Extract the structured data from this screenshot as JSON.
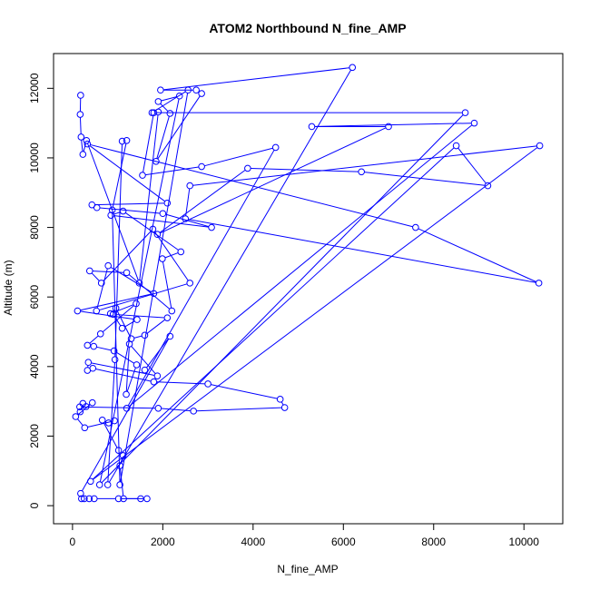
{
  "chart_data": {
    "type": "line",
    "title": "ATOM2 Northbound N_fine_AMP",
    "xlabel": "N_fine_AMP",
    "ylabel": "Altitude (m)",
    "xlim": [
      -420,
      10860
    ],
    "ylim": [
      -520,
      13000
    ],
    "xticks": [
      0,
      2000,
      4000,
      6000,
      8000,
      10000
    ],
    "yticks": [
      0,
      2000,
      4000,
      6000,
      8000,
      10000,
      12000
    ],
    "xtick_labels": [
      "0",
      "2000",
      "4000",
      "6000",
      "8000",
      "10000"
    ],
    "ytick_labels": [
      "0",
      "2000",
      "4000",
      "6000",
      "8000",
      "10000",
      "12000"
    ],
    "grid": false,
    "legend": "none",
    "marker": "open-circle",
    "line_color": "#0000ff",
    "points": [
      [
        180,
        11800
      ],
      [
        170,
        11250
      ],
      [
        190,
        10600
      ],
      [
        230,
        10100
      ],
      [
        310,
        10500
      ],
      [
        1480,
        6400
      ],
      [
        1900,
        11320
      ],
      [
        1760,
        11300
      ],
      [
        2560,
        11950
      ],
      [
        1050,
        600
      ],
      [
        880,
        8500
      ],
      [
        1200,
        10500
      ],
      [
        1100,
        10480
      ],
      [
        940,
        4200
      ],
      [
        780,
        600
      ],
      [
        6200,
        12600
      ],
      [
        1950,
        11950
      ],
      [
        2740,
        11950
      ],
      [
        2860,
        11850
      ],
      [
        1850,
        9900
      ],
      [
        2160,
        11280
      ],
      [
        1900,
        11620
      ],
      [
        2370,
        11780
      ],
      [
        600,
        600
      ],
      [
        8700,
        11300
      ],
      [
        1800,
        11300
      ],
      [
        1550,
        9500
      ],
      [
        2860,
        9750
      ],
      [
        4500,
        10300
      ],
      [
        1200,
        2800
      ],
      [
        8900,
        11000
      ],
      [
        5300,
        10900
      ],
      [
        7000,
        10900
      ],
      [
        1880,
        7800
      ],
      [
        3880,
        9700
      ],
      [
        6400,
        9600
      ],
      [
        9200,
        9200
      ],
      [
        8500,
        10350
      ],
      [
        400,
        700
      ],
      [
        10350,
        10350
      ],
      [
        2600,
        9200
      ],
      [
        2500,
        8250
      ],
      [
        10330,
        6400
      ],
      [
        7600,
        8000
      ],
      [
        330,
        10400
      ],
      [
        2100,
        8700
      ],
      [
        430,
        8650
      ],
      [
        540,
        8570
      ],
      [
        2000,
        8400
      ],
      [
        3080,
        8000
      ],
      [
        850,
        8350
      ],
      [
        1120,
        8470
      ],
      [
        2400,
        7300
      ],
      [
        1990,
        7100
      ],
      [
        2200,
        5600
      ],
      [
        1200,
        6700
      ],
      [
        380,
        6750
      ],
      [
        640,
        6400
      ],
      [
        1780,
        7950
      ],
      [
        2600,
        6400
      ],
      [
        530,
        5600
      ],
      [
        790,
        6900
      ],
      [
        1800,
        6100
      ],
      [
        110,
        5600
      ],
      [
        1430,
        5350
      ],
      [
        1100,
        5100
      ],
      [
        900,
        5500
      ],
      [
        2100,
        5400
      ],
      [
        1600,
        4900
      ],
      [
        1300,
        4800
      ],
      [
        960,
        5680
      ],
      [
        840,
        5520
      ],
      [
        1410,
        5810
      ],
      [
        620,
        4940
      ],
      [
        330,
        4610
      ],
      [
        470,
        4580
      ],
      [
        920,
        4450
      ],
      [
        1420,
        4050
      ],
      [
        1190,
        3200
      ],
      [
        1260,
        4650
      ],
      [
        1880,
        3730
      ],
      [
        350,
        4120
      ],
      [
        330,
        3890
      ],
      [
        450,
        3950
      ],
      [
        1800,
        3560
      ],
      [
        3000,
        3500
      ],
      [
        4600,
        3060
      ],
      [
        4700,
        2820
      ],
      [
        2680,
        2720
      ],
      [
        1900,
        2800
      ],
      [
        160,
        2840
      ],
      [
        170,
        2700
      ],
      [
        230,
        2940
      ],
      [
        300,
        2850
      ],
      [
        440,
        2960
      ],
      [
        70,
        2560
      ],
      [
        270,
        2240
      ],
      [
        930,
        2440
      ],
      [
        800,
        2380
      ],
      [
        660,
        2460
      ],
      [
        1020,
        1590
      ],
      [
        1120,
        1440
      ],
      [
        1050,
        1150
      ],
      [
        1130,
        200
      ],
      [
        1650,
        200
      ],
      [
        1510,
        200
      ],
      [
        1020,
        200
      ],
      [
        480,
        200
      ],
      [
        370,
        200
      ],
      [
        260,
        200
      ],
      [
        200,
        200
      ],
      [
        180,
        350
      ],
      [
        2160,
        4870
      ],
      [
        1600,
        3900
      ]
    ]
  }
}
